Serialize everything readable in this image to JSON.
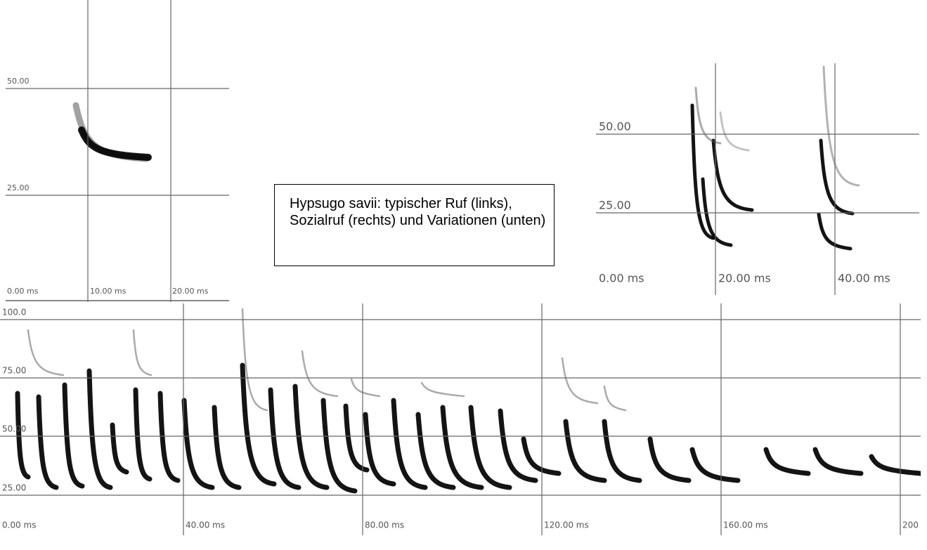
{
  "panels": [
    {
      "yticks": [
        "50.00",
        "25.00"
      ],
      "xticks": [
        "0.00 ms",
        "10.00 ms",
        "20.00 ms"
      ]
    },
    {
      "yticks": [
        "50.00",
        "25.00"
      ],
      "xticks": [
        "0.00 ms",
        "20.00 ms",
        "40.00 ms"
      ]
    },
    {
      "yticks": [
        "100.0",
        "75.00",
        "50.00",
        "25.00"
      ],
      "xticks": [
        "0.00 ms",
        "40.00 ms",
        "80.00 ms",
        "120.00 ms",
        "160.00 ms",
        "200"
      ]
    }
  ],
  "caption": "Hypsugo savii: typischer Ruf (links), Sozialruf (rechts) und Variationen (unten)"
}
